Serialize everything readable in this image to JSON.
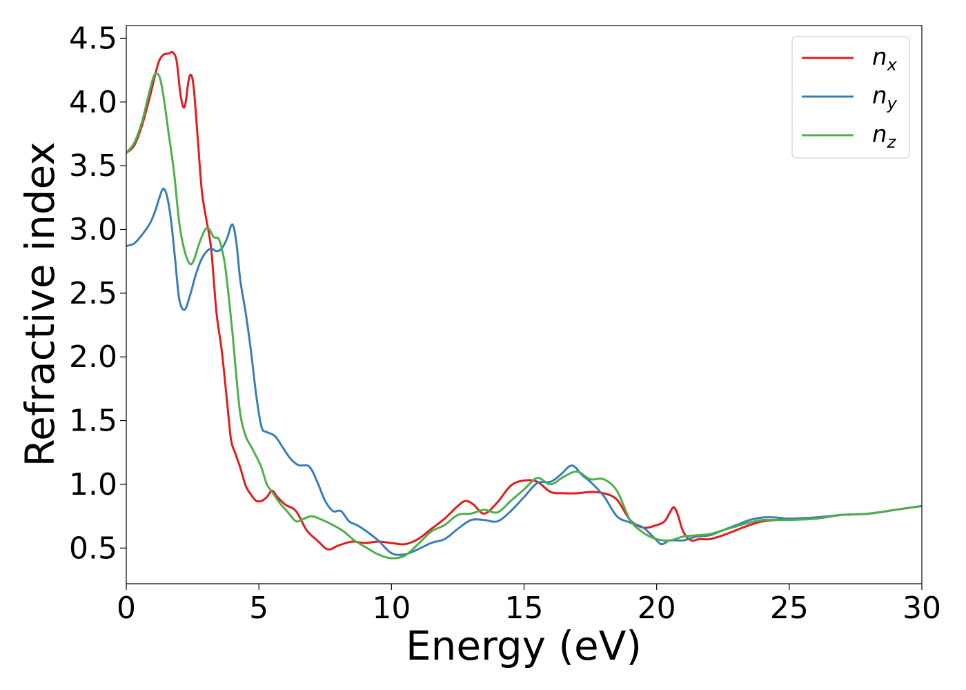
{
  "chart_data": {
    "type": "line",
    "xlabel": "Energy (eV)",
    "ylabel": "Refractive index",
    "xlim": [
      0,
      30
    ],
    "ylim": [
      0.22,
      4.6
    ],
    "xticks": [
      0,
      5,
      10,
      15,
      20,
      25,
      30
    ],
    "xtick_labels": [
      "0",
      "5",
      "10",
      "15",
      "20",
      "25",
      "30"
    ],
    "yticks": [
      0.5,
      1.0,
      1.5,
      2.0,
      2.5,
      3.0,
      3.5,
      4.0,
      4.5
    ],
    "ytick_labels": [
      "0.5",
      "1.0",
      "1.5",
      "2.0",
      "2.5",
      "3.0",
      "3.5",
      "4.0",
      "4.5"
    ],
    "grid": false,
    "legend_position": "top-right",
    "series": [
      {
        "name": "n",
        "subscript": "x",
        "color": "#e41a1c",
        "x": [
          0,
          0.3,
          0.6,
          0.9,
          1.2,
          1.4,
          1.6,
          1.75,
          1.9,
          2.05,
          2.2,
          2.35,
          2.45,
          2.55,
          2.7,
          2.85,
          3.0,
          3.2,
          3.4,
          3.6,
          3.8,
          3.95,
          4.1,
          4.3,
          4.5,
          4.7,
          4.9,
          5.1,
          5.3,
          5.5,
          5.7,
          6.0,
          6.4,
          6.8,
          7.2,
          7.6,
          8.0,
          8.5,
          9.0,
          9.5,
          10.0,
          10.5,
          11.0,
          11.5,
          12.0,
          12.5,
          12.8,
          13.1,
          13.5,
          14.0,
          14.5,
          15.0,
          15.5,
          16.0,
          16.5,
          17.0,
          17.5,
          18.0,
          18.5,
          19.0,
          19.5,
          20.0,
          20.3,
          20.5,
          20.65,
          20.8,
          21.0,
          21.3,
          21.6,
          22.0,
          22.5,
          23.0,
          23.5,
          24.0,
          24.5,
          25.0,
          26.0,
          27.0,
          28.0,
          29.0,
          30.0
        ],
        "y": [
          3.6,
          3.66,
          3.82,
          4.05,
          4.3,
          4.37,
          4.38,
          4.39,
          4.32,
          4.05,
          3.96,
          4.17,
          4.21,
          4.1,
          3.7,
          3.3,
          3.1,
          2.85,
          2.35,
          2.05,
          1.65,
          1.35,
          1.25,
          1.13,
          0.99,
          0.92,
          0.87,
          0.87,
          0.9,
          0.95,
          0.9,
          0.84,
          0.79,
          0.64,
          0.56,
          0.49,
          0.52,
          0.55,
          0.54,
          0.55,
          0.54,
          0.53,
          0.57,
          0.65,
          0.73,
          0.83,
          0.87,
          0.84,
          0.77,
          0.86,
          0.99,
          1.03,
          1.02,
          0.94,
          0.93,
          0.93,
          0.94,
          0.93,
          0.88,
          0.72,
          0.66,
          0.68,
          0.71,
          0.78,
          0.82,
          0.76,
          0.63,
          0.56,
          0.57,
          0.57,
          0.6,
          0.64,
          0.68,
          0.71,
          0.72,
          0.73,
          0.74,
          0.76,
          0.77,
          0.8,
          0.83
        ]
      },
      {
        "name": "n",
        "subscript": "y",
        "color": "#377eb8",
        "x": [
          0,
          0.3,
          0.6,
          0.9,
          1.1,
          1.25,
          1.4,
          1.55,
          1.7,
          1.85,
          2.0,
          2.2,
          2.4,
          2.6,
          2.8,
          3.0,
          3.2,
          3.4,
          3.6,
          3.8,
          4.0,
          4.15,
          4.3,
          4.5,
          4.7,
          4.9,
          5.1,
          5.3,
          5.6,
          5.9,
          6.2,
          6.5,
          6.9,
          7.2,
          7.5,
          7.8,
          8.1,
          8.4,
          8.7,
          9.0,
          9.5,
          10.0,
          10.5,
          11.0,
          11.5,
          12.0,
          12.5,
          13.0,
          13.5,
          14.0,
          14.5,
          15.0,
          15.5,
          16.0,
          16.4,
          16.7,
          16.9,
          17.2,
          17.5,
          18.0,
          18.5,
          19.0,
          19.5,
          20.0,
          20.2,
          20.5,
          21.0,
          21.5,
          22.0,
          22.5,
          23.0,
          23.5,
          24.0,
          24.5,
          25.0,
          26.0,
          27.0,
          28.0,
          29.0,
          30.0
        ],
        "y": [
          2.87,
          2.89,
          2.96,
          3.05,
          3.15,
          3.25,
          3.32,
          3.25,
          3.05,
          2.75,
          2.45,
          2.37,
          2.48,
          2.63,
          2.75,
          2.82,
          2.85,
          2.83,
          2.85,
          2.93,
          3.04,
          2.9,
          2.6,
          2.35,
          2.05,
          1.7,
          1.45,
          1.41,
          1.38,
          1.29,
          1.2,
          1.15,
          1.14,
          1.02,
          0.87,
          0.79,
          0.79,
          0.71,
          0.68,
          0.64,
          0.56,
          0.46,
          0.45,
          0.49,
          0.54,
          0.57,
          0.65,
          0.72,
          0.72,
          0.71,
          0.79,
          0.9,
          1.01,
          1.02,
          1.08,
          1.14,
          1.14,
          1.07,
          1.02,
          0.91,
          0.75,
          0.7,
          0.66,
          0.56,
          0.53,
          0.56,
          0.56,
          0.59,
          0.6,
          0.64,
          0.68,
          0.72,
          0.74,
          0.74,
          0.73,
          0.74,
          0.76,
          0.77,
          0.8,
          0.83
        ]
      },
      {
        "name": "n",
        "subscript": "z",
        "color": "#4daf4a",
        "x": [
          0,
          0.3,
          0.6,
          0.8,
          1.0,
          1.1,
          1.25,
          1.4,
          1.6,
          1.8,
          2.0,
          2.2,
          2.4,
          2.55,
          2.75,
          2.95,
          3.1,
          3.3,
          3.5,
          3.7,
          3.85,
          4.0,
          4.15,
          4.3,
          4.5,
          4.7,
          4.9,
          5.1,
          5.3,
          5.5,
          5.8,
          6.1,
          6.4,
          6.7,
          7.0,
          7.4,
          7.8,
          8.2,
          8.6,
          9.0,
          9.5,
          10.0,
          10.5,
          11.0,
          11.5,
          12.0,
          12.5,
          13.0,
          13.5,
          14.0,
          14.5,
          15.0,
          15.5,
          16.0,
          16.5,
          17.0,
          17.5,
          18.0,
          18.5,
          19.0,
          19.5,
          20.0,
          20.5,
          21.0,
          21.5,
          22.0,
          22.5,
          23.0,
          23.5,
          24.0,
          24.5,
          25.0,
          26.0,
          27.0,
          28.0,
          29.0,
          30.0
        ],
        "y": [
          3.6,
          3.68,
          3.85,
          4.02,
          4.18,
          4.22,
          4.2,
          4.05,
          3.75,
          3.45,
          3.05,
          2.83,
          2.73,
          2.76,
          2.89,
          2.99,
          3.01,
          2.94,
          2.92,
          2.75,
          2.5,
          2.2,
          1.85,
          1.55,
          1.38,
          1.3,
          1.22,
          1.13,
          1.0,
          0.94,
          0.85,
          0.78,
          0.71,
          0.73,
          0.75,
          0.72,
          0.68,
          0.63,
          0.56,
          0.51,
          0.45,
          0.42,
          0.44,
          0.53,
          0.63,
          0.68,
          0.76,
          0.77,
          0.8,
          0.78,
          0.87,
          0.96,
          1.05,
          1.0,
          1.06,
          1.1,
          1.04,
          1.04,
          0.95,
          0.72,
          0.62,
          0.57,
          0.56,
          0.59,
          0.6,
          0.61,
          0.64,
          0.67,
          0.7,
          0.72,
          0.72,
          0.72,
          0.73,
          0.76,
          0.77,
          0.8,
          0.83
        ]
      }
    ]
  }
}
